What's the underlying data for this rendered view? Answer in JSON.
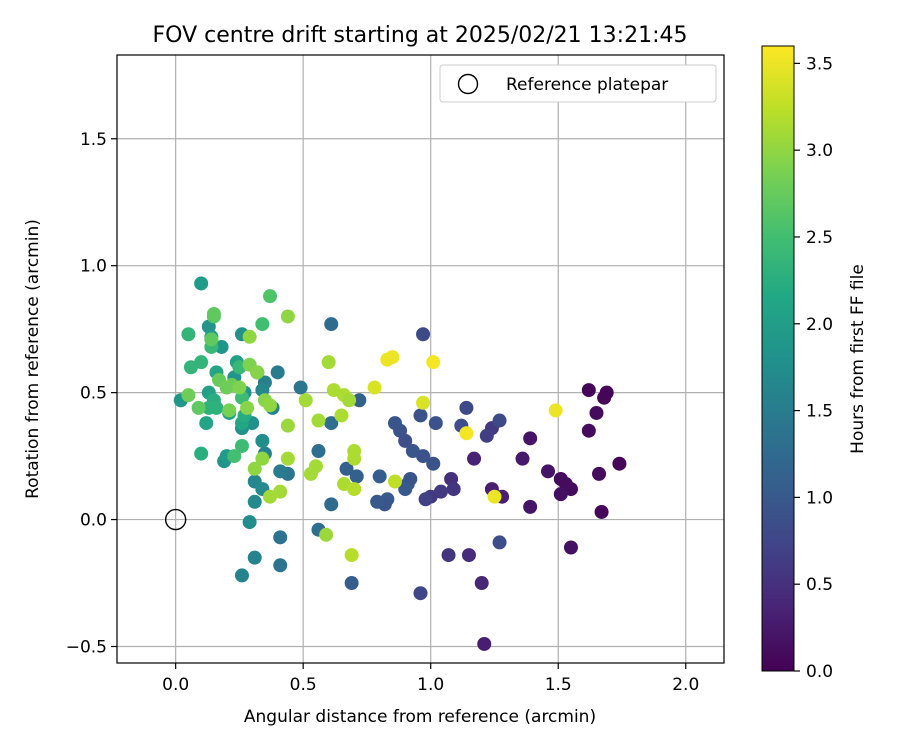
{
  "chart_data": {
    "type": "scatter",
    "title": "FOV centre drift starting at 2025/02/21 13:21:45",
    "xlabel": "Angular distance from reference (arcmin)",
    "ylabel": "Rotation from reference (arcmin)",
    "xlim": [
      -0.23,
      2.15
    ],
    "ylim": [
      -0.565,
      1.83
    ],
    "xticks": [
      0.0,
      0.5,
      1.0,
      1.5,
      2.0
    ],
    "xtick_labels": [
      "0.0",
      "0.5",
      "1.0",
      "1.5",
      "2.0"
    ],
    "yticks": [
      -0.5,
      0.0,
      0.5,
      1.0,
      1.5
    ],
    "ytick_labels": [
      "−0.5",
      "0.0",
      "0.5",
      "1.0",
      "1.5"
    ],
    "grid": true,
    "legend": {
      "placement": "top-right",
      "entries": [
        "Reference platepar"
      ]
    },
    "reference_point": {
      "name": "Reference platepar",
      "x": 0.0,
      "y": 0.0,
      "marker": "open-circle"
    },
    "colorbar": {
      "label": "Hours from first FF file",
      "colormap": "viridis",
      "range": [
        0.0,
        3.6
      ],
      "ticks": [
        0.0,
        0.5,
        1.0,
        1.5,
        2.0,
        2.5,
        3.0,
        3.5
      ],
      "tick_labels": [
        "0.0",
        "0.5",
        "1.0",
        "1.5",
        "2.0",
        "2.5",
        "3.0",
        "3.5"
      ]
    },
    "points": [
      {
        "x": 1.62,
        "y": 0.51,
        "c": 0.05
      },
      {
        "x": 1.68,
        "y": 0.48,
        "c": 0.05
      },
      {
        "x": 1.69,
        "y": 0.5,
        "c": 0.05
      },
      {
        "x": 1.65,
        "y": 0.42,
        "c": 0.1
      },
      {
        "x": 1.62,
        "y": 0.35,
        "c": 0.1
      },
      {
        "x": 1.74,
        "y": 0.22,
        "c": 0.05
      },
      {
        "x": 1.66,
        "y": 0.18,
        "c": 0.1
      },
      {
        "x": 1.67,
        "y": 0.03,
        "c": 0.05
      },
      {
        "x": 1.55,
        "y": 0.12,
        "c": 0.1
      },
      {
        "x": 1.53,
        "y": 0.14,
        "c": 0.1
      },
      {
        "x": 1.51,
        "y": 0.16,
        "c": 0.1
      },
      {
        "x": 1.51,
        "y": 0.1,
        "c": 0.15
      },
      {
        "x": 1.46,
        "y": 0.19,
        "c": 0.2
      },
      {
        "x": 1.55,
        "y": -0.11,
        "c": 0.15
      },
      {
        "x": 1.39,
        "y": 0.32,
        "c": 0.2
      },
      {
        "x": 1.36,
        "y": 0.24,
        "c": 0.25
      },
      {
        "x": 1.39,
        "y": 0.05,
        "c": 0.2
      },
      {
        "x": 1.28,
        "y": 0.09,
        "c": 0.3
      },
      {
        "x": 1.24,
        "y": 0.12,
        "c": 0.3
      },
      {
        "x": 1.17,
        "y": 0.24,
        "c": 0.35
      },
      {
        "x": 1.2,
        "y": -0.25,
        "c": 0.4
      },
      {
        "x": 1.21,
        "y": -0.49,
        "c": 0.3
      },
      {
        "x": 1.15,
        "y": -0.14,
        "c": 0.45
      },
      {
        "x": 1.07,
        "y": -0.14,
        "c": 0.55
      },
      {
        "x": 1.08,
        "y": 0.16,
        "c": 0.5
      },
      {
        "x": 1.09,
        "y": 0.12,
        "c": 0.55
      },
      {
        "x": 1.04,
        "y": 0.11,
        "c": 0.6
      },
      {
        "x": 1.0,
        "y": 0.09,
        "c": 0.6
      },
      {
        "x": 0.98,
        "y": 0.08,
        "c": 0.7
      },
      {
        "x": 0.96,
        "y": -0.29,
        "c": 0.75
      },
      {
        "x": 1.24,
        "y": 0.36,
        "c": 0.6
      },
      {
        "x": 1.22,
        "y": 0.33,
        "c": 0.65
      },
      {
        "x": 1.27,
        "y": 0.39,
        "c": 0.8
      },
      {
        "x": 1.27,
        "y": -0.09,
        "c": 0.85
      },
      {
        "x": 1.14,
        "y": 0.44,
        "c": 0.8
      },
      {
        "x": 1.12,
        "y": 0.37,
        "c": 0.85
      },
      {
        "x": 1.02,
        "y": 0.38,
        "c": 0.9
      },
      {
        "x": 1.01,
        "y": 0.22,
        "c": 0.9
      },
      {
        "x": 0.97,
        "y": 0.73,
        "c": 0.8
      },
      {
        "x": 0.96,
        "y": 0.41,
        "c": 0.9
      },
      {
        "x": 0.9,
        "y": 0.31,
        "c": 0.85
      },
      {
        "x": 0.88,
        "y": 0.35,
        "c": 0.9
      },
      {
        "x": 0.86,
        "y": 0.38,
        "c": 0.95
      },
      {
        "x": 0.93,
        "y": 0.27,
        "c": 0.95
      },
      {
        "x": 0.97,
        "y": 0.25,
        "c": 0.9
      },
      {
        "x": 0.92,
        "y": 0.16,
        "c": 0.95
      },
      {
        "x": 0.91,
        "y": 0.14,
        "c": 0.95
      },
      {
        "x": 0.9,
        "y": 0.12,
        "c": 1.0
      },
      {
        "x": 0.83,
        "y": 0.08,
        "c": 1.0
      },
      {
        "x": 0.82,
        "y": 0.06,
        "c": 0.95
      },
      {
        "x": 0.79,
        "y": 0.07,
        "c": 1.0
      },
      {
        "x": 0.8,
        "y": 0.17,
        "c": 1.05
      },
      {
        "x": 0.72,
        "y": 0.47,
        "c": 1.1
      },
      {
        "x": 0.71,
        "y": 0.17,
        "c": 1.1
      },
      {
        "x": 0.67,
        "y": 0.2,
        "c": 1.1
      },
      {
        "x": 0.69,
        "y": -0.25,
        "c": 1.05
      },
      {
        "x": 0.61,
        "y": 0.77,
        "c": 1.25
      },
      {
        "x": 0.61,
        "y": 0.38,
        "c": 1.3
      },
      {
        "x": 0.56,
        "y": 0.27,
        "c": 1.3
      },
      {
        "x": 0.61,
        "y": 0.06,
        "c": 1.25
      },
      {
        "x": 0.56,
        "y": -0.04,
        "c": 1.3
      },
      {
        "x": 0.49,
        "y": 0.52,
        "c": 1.4
      },
      {
        "x": 0.44,
        "y": 0.18,
        "c": 1.4
      },
      {
        "x": 0.41,
        "y": -0.07,
        "c": 1.35
      },
      {
        "x": 0.41,
        "y": -0.18,
        "c": 1.4
      },
      {
        "x": 0.4,
        "y": 0.58,
        "c": 1.5
      },
      {
        "x": 0.41,
        "y": 0.19,
        "c": 1.5
      },
      {
        "x": 0.35,
        "y": 0.54,
        "c": 1.55
      },
      {
        "x": 0.32,
        "y": 0.58,
        "c": 1.6
      },
      {
        "x": 0.34,
        "y": 0.51,
        "c": 1.65
      },
      {
        "x": 0.38,
        "y": 0.44,
        "c": 1.6
      },
      {
        "x": 0.35,
        "y": 0.26,
        "c": 1.6
      },
      {
        "x": 0.31,
        "y": 0.15,
        "c": 1.65
      },
      {
        "x": 0.34,
        "y": 0.12,
        "c": 1.7
      },
      {
        "x": 0.31,
        "y": 0.07,
        "c": 1.7
      },
      {
        "x": 0.31,
        "y": -0.15,
        "c": 1.6
      },
      {
        "x": 0.26,
        "y": -0.22,
        "c": 1.6
      },
      {
        "x": 0.29,
        "y": -0.01,
        "c": 1.75
      },
      {
        "x": 0.34,
        "y": 0.31,
        "c": 1.75
      },
      {
        "x": 0.3,
        "y": 0.38,
        "c": 1.8
      },
      {
        "x": 0.26,
        "y": 0.36,
        "c": 1.8
      },
      {
        "x": 0.27,
        "y": 0.5,
        "c": 1.85
      },
      {
        "x": 0.23,
        "y": 0.56,
        "c": 1.85
      },
      {
        "x": 0.26,
        "y": 0.73,
        "c": 1.8
      },
      {
        "x": 0.18,
        "y": 0.68,
        "c": 1.85
      },
      {
        "x": 0.13,
        "y": 0.76,
        "c": 1.85
      },
      {
        "x": 0.14,
        "y": 0.72,
        "c": 1.95
      },
      {
        "x": 0.1,
        "y": 0.93,
        "c": 1.95
      },
      {
        "x": 0.02,
        "y": 0.47,
        "c": 1.9
      },
      {
        "x": 0.19,
        "y": 0.23,
        "c": 1.85
      },
      {
        "x": 0.2,
        "y": 0.25,
        "c": 1.95
      },
      {
        "x": 0.21,
        "y": 0.42,
        "c": 2.0
      },
      {
        "x": 0.24,
        "y": 0.62,
        "c": 2.05
      },
      {
        "x": 0.13,
        "y": 0.5,
        "c": 2.05
      },
      {
        "x": 0.12,
        "y": 0.38,
        "c": 2.1
      },
      {
        "x": 0.16,
        "y": 0.58,
        "c": 2.1
      },
      {
        "x": 0.26,
        "y": 0.38,
        "c": 2.15
      },
      {
        "x": 0.27,
        "y": 0.41,
        "c": 2.2
      },
      {
        "x": 0.1,
        "y": 0.26,
        "c": 2.25
      },
      {
        "x": 0.15,
        "y": 0.47,
        "c": 2.25
      },
      {
        "x": 0.13,
        "y": 0.44,
        "c": 2.3
      },
      {
        "x": 0.16,
        "y": 0.44,
        "c": 2.3
      },
      {
        "x": 0.05,
        "y": 0.73,
        "c": 2.35
      },
      {
        "x": 0.06,
        "y": 0.6,
        "c": 2.35
      },
      {
        "x": 0.1,
        "y": 0.62,
        "c": 2.35
      },
      {
        "x": 0.14,
        "y": 0.68,
        "c": 2.4
      },
      {
        "x": 0.25,
        "y": 0.6,
        "c": 2.4
      },
      {
        "x": 0.26,
        "y": 0.48,
        "c": 2.45
      },
      {
        "x": 0.26,
        "y": 0.29,
        "c": 2.45
      },
      {
        "x": 0.23,
        "y": 0.25,
        "c": 2.5
      },
      {
        "x": 0.34,
        "y": 0.77,
        "c": 2.5
      },
      {
        "x": 0.37,
        "y": 0.88,
        "c": 2.6
      },
      {
        "x": 0.15,
        "y": 0.8,
        "c": 2.65
      },
      {
        "x": 0.15,
        "y": 0.81,
        "c": 2.7
      },
      {
        "x": 0.14,
        "y": 0.71,
        "c": 2.7
      },
      {
        "x": 0.17,
        "y": 0.55,
        "c": 2.75
      },
      {
        "x": 0.09,
        "y": 0.44,
        "c": 2.7
      },
      {
        "x": 0.05,
        "y": 0.49,
        "c": 2.8
      },
      {
        "x": 0.2,
        "y": 0.52,
        "c": 2.8
      },
      {
        "x": 0.22,
        "y": 0.53,
        "c": 2.8
      },
      {
        "x": 0.21,
        "y": 0.43,
        "c": 2.85
      },
      {
        "x": 0.25,
        "y": 0.52,
        "c": 2.9
      },
      {
        "x": 0.29,
        "y": 0.61,
        "c": 2.9
      },
      {
        "x": 0.28,
        "y": 0.44,
        "c": 2.95
      },
      {
        "x": 0.32,
        "y": 0.58,
        "c": 2.95
      },
      {
        "x": 0.35,
        "y": 0.47,
        "c": 2.95
      },
      {
        "x": 0.37,
        "y": 0.45,
        "c": 3.0
      },
      {
        "x": 0.34,
        "y": 0.24,
        "c": 3.0
      },
      {
        "x": 0.31,
        "y": 0.2,
        "c": 3.0
      },
      {
        "x": 0.29,
        "y": 0.72,
        "c": 3.0
      },
      {
        "x": 0.44,
        "y": 0.8,
        "c": 3.0
      },
      {
        "x": 0.44,
        "y": 0.37,
        "c": 3.05
      },
      {
        "x": 0.44,
        "y": 0.24,
        "c": 3.1
      },
      {
        "x": 0.41,
        "y": 0.11,
        "c": 3.1
      },
      {
        "x": 0.37,
        "y": 0.09,
        "c": 3.1
      },
      {
        "x": 0.51,
        "y": 0.47,
        "c": 3.1
      },
      {
        "x": 0.56,
        "y": 0.39,
        "c": 3.1
      },
      {
        "x": 0.55,
        "y": 0.21,
        "c": 3.1
      },
      {
        "x": 0.53,
        "y": 0.18,
        "c": 3.1
      },
      {
        "x": 0.59,
        "y": -0.06,
        "c": 3.05
      },
      {
        "x": 0.6,
        "y": 0.62,
        "c": 3.1
      },
      {
        "x": 0.62,
        "y": 0.51,
        "c": 3.15
      },
      {
        "x": 0.66,
        "y": 0.49,
        "c": 3.15
      },
      {
        "x": 0.68,
        "y": 0.47,
        "c": 3.1
      },
      {
        "x": 0.65,
        "y": 0.41,
        "c": 3.15
      },
      {
        "x": 0.7,
        "y": 0.27,
        "c": 3.15
      },
      {
        "x": 0.7,
        "y": 0.24,
        "c": 3.15
      },
      {
        "x": 0.66,
        "y": 0.14,
        "c": 3.15
      },
      {
        "x": 0.7,
        "y": 0.12,
        "c": 3.2
      },
      {
        "x": 0.69,
        "y": -0.14,
        "c": 3.2
      },
      {
        "x": 0.86,
        "y": 0.15,
        "c": 3.25
      },
      {
        "x": 0.78,
        "y": 0.52,
        "c": 3.4
      },
      {
        "x": 0.83,
        "y": 0.63,
        "c": 3.5
      },
      {
        "x": 0.85,
        "y": 0.64,
        "c": 3.5
      },
      {
        "x": 0.97,
        "y": 0.46,
        "c": 3.4
      },
      {
        "x": 1.01,
        "y": 0.62,
        "c": 3.55
      },
      {
        "x": 1.14,
        "y": 0.34,
        "c": 3.55
      },
      {
        "x": 1.25,
        "y": 0.09,
        "c": 3.5
      },
      {
        "x": 1.49,
        "y": 0.43,
        "c": 3.5
      }
    ]
  }
}
